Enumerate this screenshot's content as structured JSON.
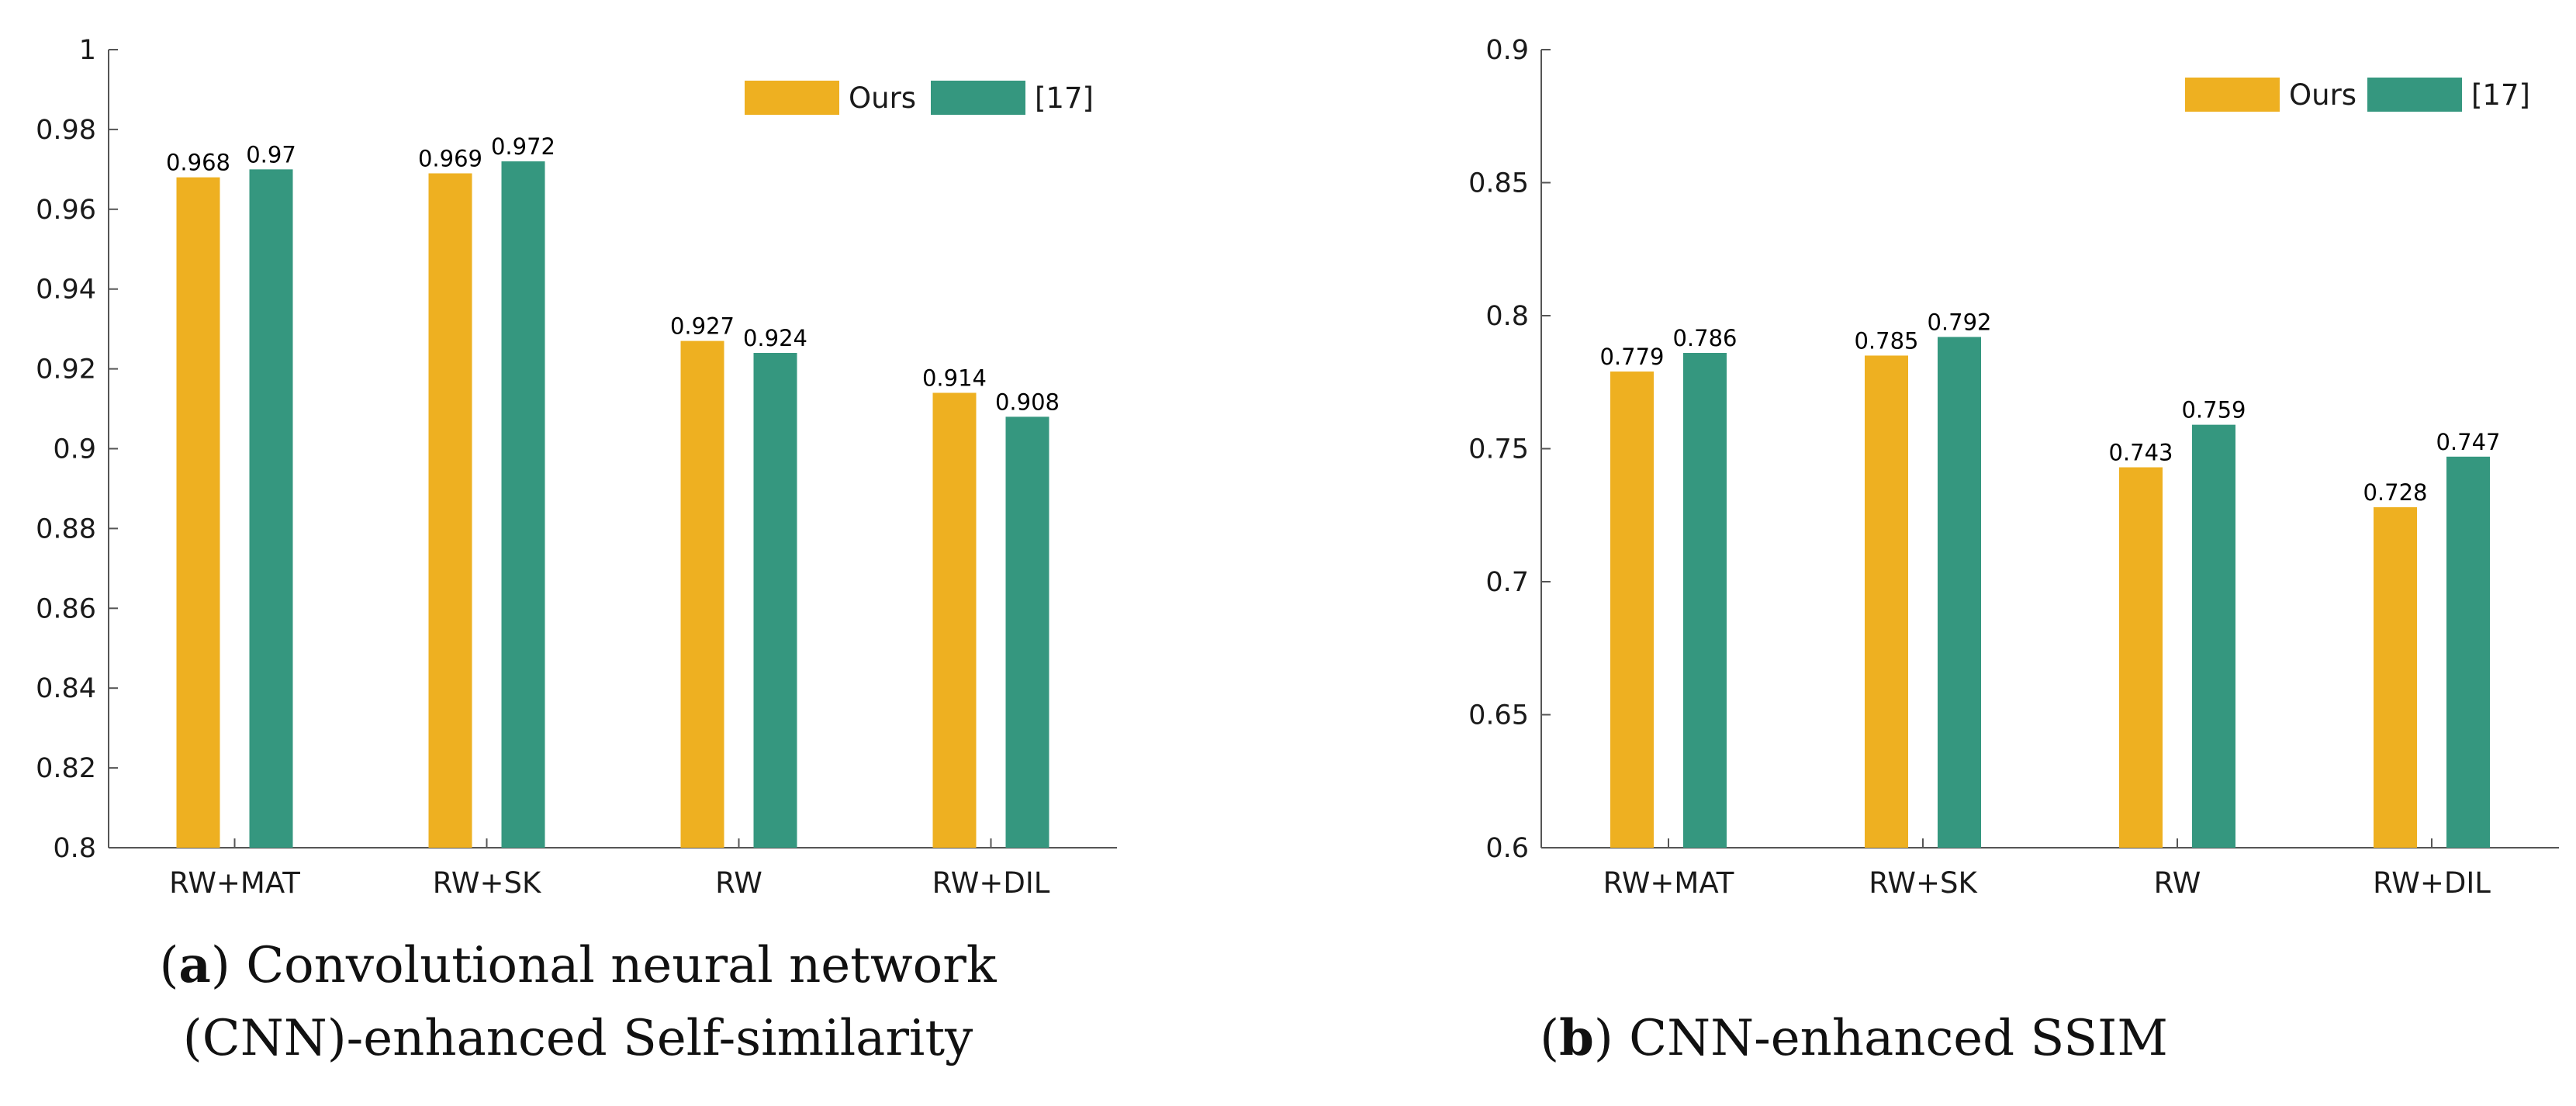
{
  "colors": {
    "ours": "#EEB021",
    "ref": "#35977F",
    "axis": "#555555"
  },
  "chart_data": [
    {
      "type": "bar",
      "categories": [
        "RW+MAT",
        "RW+SK",
        "RW",
        "RW+DIL"
      ],
      "series": [
        {
          "name": "Ours",
          "values": [
            0.968,
            0.969,
            0.927,
            0.914
          ],
          "labels": [
            "0.968",
            "0.969",
            "0.927",
            "0.914"
          ]
        },
        {
          "name": "[17]",
          "values": [
            0.97,
            0.972,
            0.924,
            0.908
          ],
          "labels": [
            "0.97",
            "0.972",
            "0.924",
            "0.908"
          ]
        }
      ],
      "ylim": [
        0.8,
        1.0
      ],
      "yticks": [
        0.8,
        0.82,
        0.84,
        0.86,
        0.88,
        0.9,
        0.92,
        0.94,
        0.96,
        0.98,
        1.0
      ],
      "ytick_labels": [
        "0.8",
        "0.82",
        "0.84",
        "0.86",
        "0.88",
        "0.9",
        "0.92",
        "0.94",
        "0.96",
        "0.98",
        "1"
      ],
      "legend": "top-right",
      "grid": false,
      "xlabel": "",
      "ylabel": "",
      "caption_letter": "a",
      "caption_line1": ") Convolutional neural network",
      "caption_line2": "(CNN)-enhanced Self-similarity"
    },
    {
      "type": "bar",
      "categories": [
        "RW+MAT",
        "RW+SK",
        "RW",
        "RW+DIL"
      ],
      "series": [
        {
          "name": "Ours",
          "values": [
            0.779,
            0.785,
            0.743,
            0.728
          ],
          "labels": [
            "0.779",
            "0.785",
            "0.743",
            "0.728"
          ]
        },
        {
          "name": "[17]",
          "values": [
            0.786,
            0.792,
            0.759,
            0.747
          ],
          "labels": [
            "0.786",
            "0.792",
            "0.759",
            "0.747"
          ]
        }
      ],
      "ylim": [
        0.6,
        0.9
      ],
      "yticks": [
        0.6,
        0.65,
        0.7,
        0.75,
        0.8,
        0.85,
        0.9
      ],
      "ytick_labels": [
        "0.6",
        "0.65",
        "0.7",
        "0.75",
        "0.8",
        "0.85",
        "0.9"
      ],
      "legend": "top-right",
      "grid": false,
      "xlabel": "",
      "ylabel": "",
      "caption_letter": "b",
      "caption_line1": ") CNN-enhanced SSIM"
    }
  ]
}
